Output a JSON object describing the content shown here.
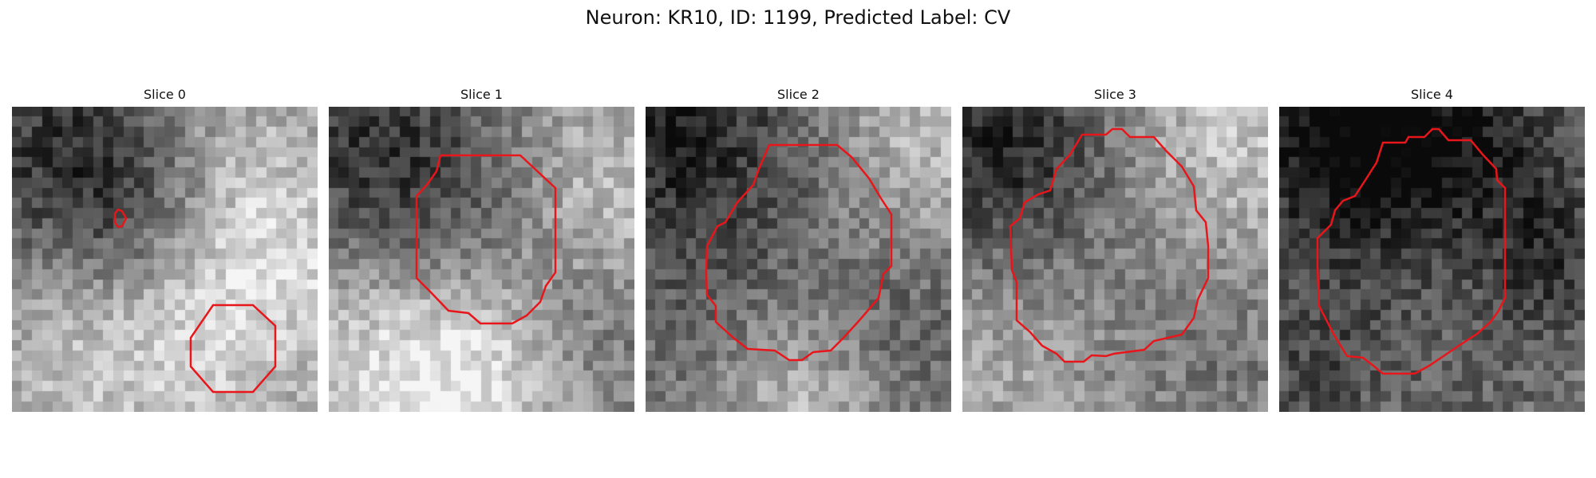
{
  "figure": {
    "title": "Neuron: KR10, ID: 1199, Predicted Label: CV"
  },
  "panels": [
    {
      "title": "Slice 0",
      "contour_color": "#e8161b"
    },
    {
      "title": "Slice 1",
      "contour_color": "#e8161b"
    },
    {
      "title": "Slice 2",
      "contour_color": "#e8161b"
    },
    {
      "title": "Slice 3",
      "contour_color": "#e8161b"
    },
    {
      "title": "Slice 4",
      "contour_color": "#e8161b"
    }
  ]
}
